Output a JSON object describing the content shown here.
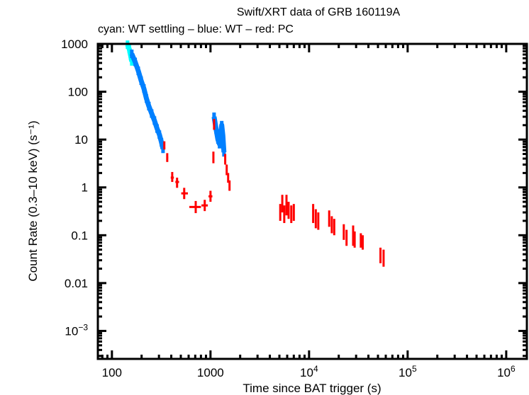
{
  "chart_data": {
    "type": "scatter",
    "title": "Swift/XRT data of GRB 160119A",
    "subtitle": "cyan: WT settling – blue: WT – red: PC",
    "xlabel": "Time since BAT trigger (s)",
    "ylabel": "Count Rate (0.3–10 keV) (s⁻¹)",
    "xscale": "log",
    "yscale": "log",
    "xlim": [
      72,
      1620000
    ],
    "ylim": [
      0.00026,
      1000
    ],
    "grid": false,
    "x_ticks": [
      {
        "value": 100,
        "label": "100"
      },
      {
        "value": 1000,
        "label": "1000"
      },
      {
        "value": 10000,
        "label": "10",
        "exp": "4"
      },
      {
        "value": 100000,
        "label": "10",
        "exp": "5"
      },
      {
        "value": 1000000,
        "label": "10",
        "exp": "6"
      }
    ],
    "y_ticks": [
      {
        "value": 1000,
        "label": "1000"
      },
      {
        "value": 100,
        "label": "100"
      },
      {
        "value": 10,
        "label": "10"
      },
      {
        "value": 1,
        "label": "1"
      },
      {
        "value": 0.1,
        "label": "0.1"
      },
      {
        "value": 0.01,
        "label": "0.01"
      },
      {
        "value": 0.001,
        "label": "10",
        "exp": "−3"
      }
    ],
    "series": [
      {
        "name": "WT settling",
        "color": "#00ffff",
        "style": "band",
        "points": [
          {
            "t": 144,
            "r": 960
          },
          {
            "t": 150,
            "r": 780
          },
          {
            "t": 155,
            "r": 560
          },
          {
            "t": 159,
            "r": 430
          }
        ]
      },
      {
        "name": "WT",
        "color": "#0080ff",
        "style": "band",
        "points": [
          {
            "t": 159,
            "r": 620
          },
          {
            "t": 172,
            "r": 420
          },
          {
            "t": 185,
            "r": 274
          },
          {
            "t": 198,
            "r": 170
          },
          {
            "t": 211,
            "r": 117
          },
          {
            "t": 224,
            "r": 72
          },
          {
            "t": 237,
            "r": 50
          },
          {
            "t": 253,
            "r": 35
          },
          {
            "t": 270,
            "r": 25
          },
          {
            "t": 287,
            "r": 17
          },
          {
            "t": 303,
            "r": 12.7
          },
          {
            "t": 318,
            "r": 8.8
          },
          {
            "t": 330,
            "r": 6.4
          }
        ]
      },
      {
        "name": "WT flare",
        "color": "#0080ff",
        "style": "band",
        "points": [
          {
            "t": 1087,
            "r": 30
          },
          {
            "t": 1115,
            "r": 22
          },
          {
            "t": 1142,
            "r": 16
          },
          {
            "t": 1190,
            "r": 10
          },
          {
            "t": 1236,
            "r": 8
          },
          {
            "t": 1265,
            "r": 12
          },
          {
            "t": 1300,
            "r": 20
          },
          {
            "t": 1335,
            "r": 12
          },
          {
            "t": 1370,
            "r": 5.4
          }
        ]
      },
      {
        "name": "PC",
        "color": "#ff0000",
        "style": "cross",
        "points": [
          {
            "t": 340,
            "r": 7.6,
            "xe": [
              335,
              345
            ],
            "ye": [
              6.2,
              9.2
            ]
          },
          {
            "t": 364,
            "r": 4.2,
            "xe": [
              356,
              372
            ],
            "ye": [
              3.4,
              5.2
            ]
          },
          {
            "t": 409,
            "r": 1.6,
            "xe": [
              395,
              425
            ],
            "ye": [
              1.3,
              2.1
            ]
          },
          {
            "t": 458,
            "r": 1.3,
            "xe": [
              440,
              480
            ],
            "ye": [
              0.98,
              1.6
            ]
          },
          {
            "t": 541,
            "r": 0.75,
            "xe": [
              505,
              590
            ],
            "ye": [
              0.57,
              0.98
            ]
          },
          {
            "t": 708,
            "r": 0.39,
            "xe": [
              610,
              800
            ],
            "ye": [
              0.29,
              0.52
            ]
          },
          {
            "t": 874,
            "r": 0.42,
            "xe": [
              810,
              940
            ],
            "ye": [
              0.32,
              0.55
            ]
          },
          {
            "t": 1000,
            "r": 0.65,
            "xe": [
              955,
              1045
            ],
            "ye": [
              0.5,
              0.85
            ]
          },
          {
            "t": 1070,
            "r": 4.3,
            "xe": [
              1055,
              1085
            ],
            "ye": [
              3.2,
              5.6
            ]
          },
          {
            "t": 1087,
            "r": 21,
            "xe": [
              1075,
              1100
            ],
            "ye": [
              16,
              27
            ]
          },
          {
            "t": 1410,
            "r": 3.9,
            "xe": [
              1390,
              1430
            ],
            "ye": [
              3.0,
              5.0
            ]
          },
          {
            "t": 1460,
            "r": 2.3,
            "xe": [
              1440,
              1480
            ],
            "ye": [
              1.8,
              3.0
            ]
          },
          {
            "t": 1510,
            "r": 1.6,
            "xe": [
              1490,
              1530
            ],
            "ye": [
              1.25,
              2.0
            ]
          },
          {
            "t": 1560,
            "r": 1.1,
            "xe": [
              1535,
              1590
            ],
            "ye": [
              0.85,
              1.4
            ]
          },
          {
            "t": 5100,
            "r": 0.3,
            "xe": [
              5000,
              5200
            ],
            "ye": [
              0.2,
              0.45
            ]
          },
          {
            "t": 5350,
            "r": 0.42,
            "xe": [
              5250,
              5450
            ],
            "ye": [
              0.3,
              0.7
            ]
          },
          {
            "t": 5600,
            "r": 0.28,
            "xe": [
              5500,
              5700
            ],
            "ye": [
              0.18,
              0.42
            ]
          },
          {
            "t": 5900,
            "r": 0.38,
            "xe": [
              5800,
              6000
            ],
            "ye": [
              0.26,
              0.7
            ]
          },
          {
            "t": 6200,
            "r": 0.32,
            "xe": [
              6100,
              6300
            ],
            "ye": [
              0.22,
              0.5
            ]
          },
          {
            "t": 6600,
            "r": 0.28,
            "xe": [
              6500,
              6700
            ],
            "ye": [
              0.18,
              0.42
            ]
          },
          {
            "t": 7000,
            "r": 0.3,
            "xe": [
              6900,
              7100
            ],
            "ye": [
              0.2,
              0.45
            ]
          },
          {
            "t": 11000,
            "r": 0.28,
            "xe": [
              10800,
              11200
            ],
            "ye": [
              0.18,
              0.45
            ]
          },
          {
            "t": 11700,
            "r": 0.22,
            "xe": [
              11500,
              11900
            ],
            "ye": [
              0.14,
              0.35
            ]
          },
          {
            "t": 12400,
            "r": 0.2,
            "xe": [
              12200,
              12600
            ],
            "ye": [
              0.13,
              0.3
            ]
          },
          {
            "t": 16000,
            "r": 0.22,
            "xe": [
              15800,
              16200
            ],
            "ye": [
              0.15,
              0.33
            ]
          },
          {
            "t": 17000,
            "r": 0.17,
            "xe": [
              16800,
              17200
            ],
            "ye": [
              0.11,
              0.25
            ]
          },
          {
            "t": 18000,
            "r": 0.15,
            "xe": [
              17800,
              18200
            ],
            "ye": [
              0.1,
              0.22
            ]
          },
          {
            "t": 22500,
            "r": 0.12,
            "xe": [
              22200,
              22800
            ],
            "ye": [
              0.08,
              0.17
            ]
          },
          {
            "t": 24000,
            "r": 0.09,
            "xe": [
              23700,
              24300
            ],
            "ye": [
              0.06,
              0.13
            ]
          },
          {
            "t": 28000,
            "r": 0.1,
            "xe": [
              27700,
              28300
            ],
            "ye": [
              0.06,
              0.16
            ]
          },
          {
            "t": 29000,
            "r": 0.08,
            "xe": [
              28700,
              29300
            ],
            "ye": [
              0.055,
              0.12
            ]
          },
          {
            "t": 33500,
            "r": 0.08,
            "xe": [
              33200,
              33800
            ],
            "ye": [
              0.055,
              0.11
            ]
          },
          {
            "t": 35000,
            "r": 0.07,
            "xe": [
              34700,
              35300
            ],
            "ye": [
              0.05,
              0.1
            ]
          },
          {
            "t": 53000,
            "r": 0.04,
            "xe": [
              52500,
              53500
            ],
            "ye": [
              0.026,
              0.055
            ]
          },
          {
            "t": 57000,
            "r": 0.033,
            "xe": [
              56500,
              57500
            ],
            "ye": [
              0.022,
              0.05
            ]
          }
        ]
      }
    ]
  }
}
